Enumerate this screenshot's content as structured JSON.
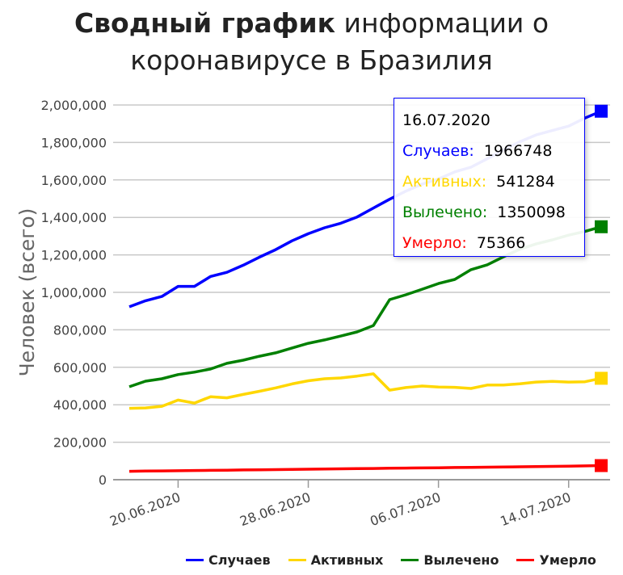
{
  "title_bold": "Сводный график",
  "title_rest": " информации о коронавирусе в Бразилия",
  "tooltip": {
    "date": "16.07.2020",
    "rows": [
      {
        "label": "Случаев:",
        "value": "1966748",
        "color": "#0000ff"
      },
      {
        "label": "Активных:",
        "value": "541284",
        "color": "#ffd700"
      },
      {
        "label": "Вылечено:",
        "value": "1350098",
        "color": "#008000"
      },
      {
        "label": "Умерло:",
        "value": "75366",
        "color": "#ff0000"
      }
    ]
  },
  "chart_data": {
    "type": "line",
    "title": "Сводный график информации о коронавирусе в Бразилия",
    "xlabel": "",
    "ylabel": "Человек (всего)",
    "ylim": [
      0,
      2000000
    ],
    "yticks": [
      "0",
      "200,000",
      "400,000",
      "600,000",
      "800,000",
      "1,000,000",
      "1,200,000",
      "1,400,000",
      "1,600,000",
      "1,800,000",
      "2,000,000"
    ],
    "ytick_values": [
      0,
      200000,
      400000,
      600000,
      800000,
      1000000,
      1200000,
      1400000,
      1600000,
      1800000,
      2000000
    ],
    "x": [
      "17.06.2020",
      "18.06.2020",
      "19.06.2020",
      "20.06.2020",
      "21.06.2020",
      "22.06.2020",
      "23.06.2020",
      "24.06.2020",
      "25.06.2020",
      "26.06.2020",
      "27.06.2020",
      "28.06.2020",
      "29.06.2020",
      "30.06.2020",
      "01.07.2020",
      "02.07.2020",
      "03.07.2020",
      "04.07.2020",
      "05.07.2020",
      "06.07.2020",
      "07.07.2020",
      "08.07.2020",
      "09.07.2020",
      "10.07.2020",
      "11.07.2020",
      "12.07.2020",
      "13.07.2020",
      "14.07.2020",
      "15.07.2020",
      "16.07.2020"
    ],
    "xticks": [
      "20.06.2020",
      "28.06.2020",
      "06.07.2020",
      "14.07.2020"
    ],
    "grid": true,
    "legend_position": "bottom-right",
    "series": [
      {
        "name": "Случаев",
        "color": "#0000ff",
        "values": [
          923000,
          955000,
          978000,
          1032000,
          1032000,
          1085000,
          1107000,
          1145000,
          1188000,
          1228000,
          1275000,
          1313000,
          1345000,
          1369000,
          1402000,
          1450000,
          1497000,
          1540000,
          1578000,
          1605000,
          1643000,
          1668000,
          1713000,
          1760000,
          1804000,
          1840000,
          1864000,
          1887000,
          1930000,
          1966748
        ]
      },
      {
        "name": "Активных",
        "color": "#ffd700",
        "values": [
          381000,
          383000,
          392000,
          425000,
          409000,
          443000,
          437000,
          455000,
          472000,
          490000,
          511000,
          528000,
          539000,
          543000,
          553000,
          565000,
          478000,
          492000,
          500000,
          495000,
          493000,
          487000,
          505000,
          505000,
          512000,
          521000,
          525000,
          521000,
          523000,
          541284
        ]
      },
      {
        "name": "Вылечено",
        "color": "#008000",
        "values": [
          496000,
          526000,
          539000,
          561000,
          574000,
          591000,
          621000,
          638000,
          659000,
          677000,
          703000,
          728000,
          746000,
          767000,
          789000,
          823000,
          961000,
          987000,
          1017000,
          1047000,
          1069000,
          1121000,
          1147000,
          1190000,
          1230000,
          1258000,
          1280000,
          1305000,
          1325000,
          1350098
        ]
      },
      {
        "name": "Умерло",
        "color": "#ff0000",
        "values": [
          45000,
          46000,
          47000,
          48000,
          49000,
          50000,
          51000,
          52000,
          53000,
          54000,
          55000,
          56000,
          57000,
          58000,
          59000,
          60000,
          61000,
          62000,
          63000,
          64000,
          65000,
          66000,
          67000,
          68000,
          69000,
          70000,
          71000,
          72000,
          73500,
          75366
        ]
      }
    ]
  }
}
